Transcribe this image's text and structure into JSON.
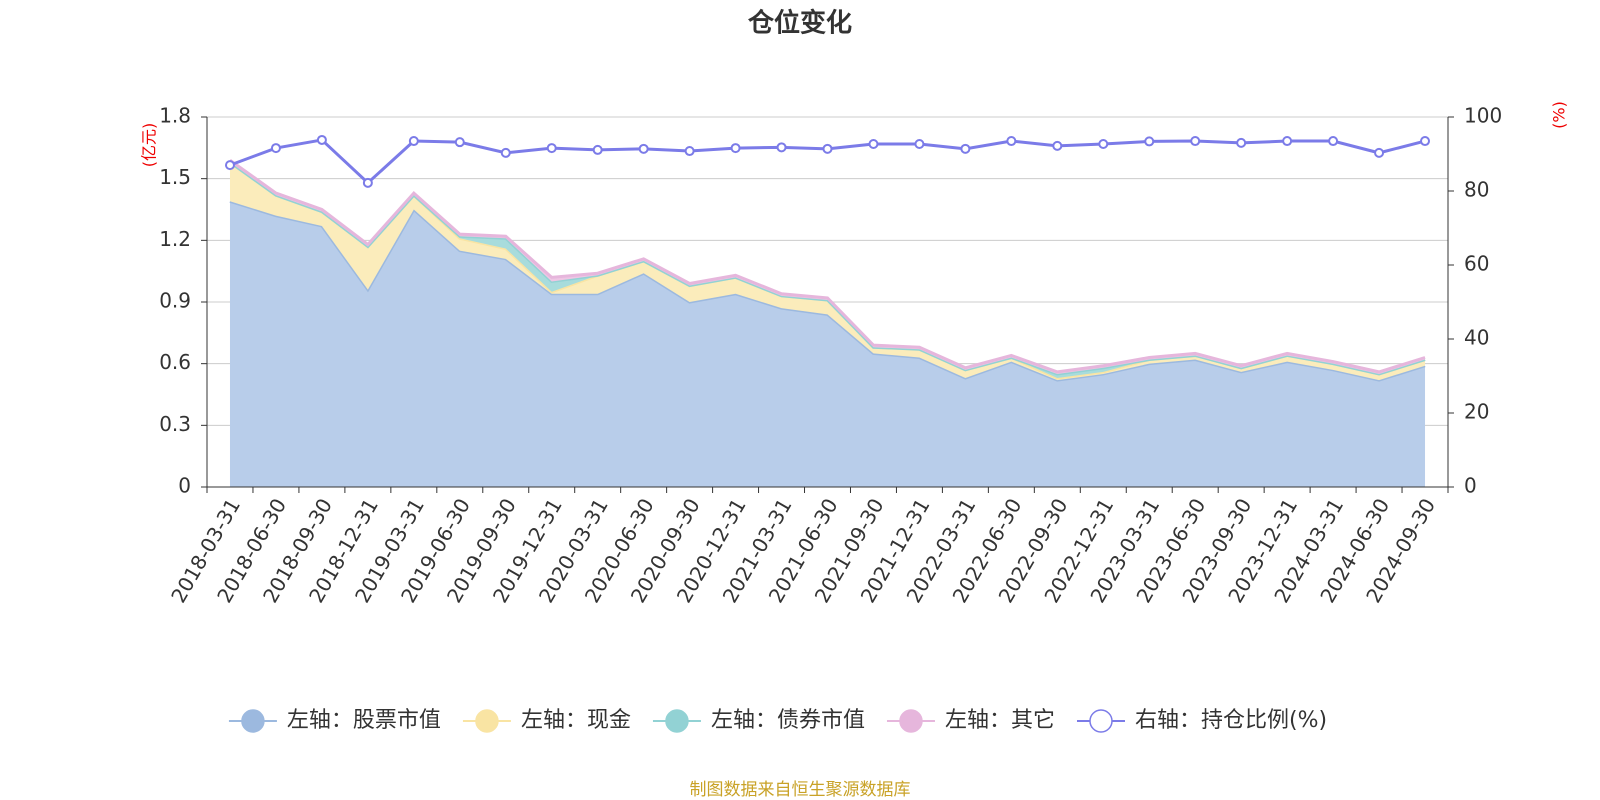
{
  "chart_data": {
    "type": "stacked-area-line",
    "title": "仓位变化",
    "y_label": "(亿元)",
    "y2_label": "(%)",
    "source": "制图数据来自恒生聚源数据库",
    "categories": [
      "2018-03-31",
      "2018-06-30",
      "2018-09-30",
      "2018-12-31",
      "2019-03-31",
      "2019-06-30",
      "2019-09-30",
      "2019-12-31",
      "2020-03-31",
      "2020-06-30",
      "2020-09-30",
      "2020-12-31",
      "2021-03-31",
      "2021-06-30",
      "2021-09-30",
      "2021-12-31",
      "2022-03-31",
      "2022-06-30",
      "2022-09-30",
      "2022-12-31",
      "2023-03-31",
      "2023-06-30",
      "2023-09-30",
      "2023-12-31",
      "2024-03-31",
      "2024-06-30",
      "2024-09-30"
    ],
    "series": [
      {
        "name": "左轴：股票市值",
        "color": "#9cb9df",
        "fill": "#b8cdea",
        "values": [
          1.39,
          1.32,
          1.27,
          0.96,
          1.35,
          1.15,
          1.11,
          0.94,
          0.94,
          1.04,
          0.9,
          0.94,
          0.87,
          0.84,
          0.65,
          0.63,
          0.53,
          0.61,
          0.52,
          0.55,
          0.6,
          0.62,
          0.56,
          0.61,
          0.57,
          0.52,
          0.59
        ]
      },
      {
        "name": "左轴：现金",
        "color": "#f9e4a3",
        "fill": "#fbecbb",
        "values": [
          0.19,
          0.1,
          0.07,
          0.21,
          0.07,
          0.06,
          0.05,
          0.01,
          0.09,
          0.06,
          0.08,
          0.08,
          0.06,
          0.07,
          0.03,
          0.04,
          0.04,
          0.02,
          0.01,
          0.01,
          0.02,
          0.02,
          0.02,
          0.03,
          0.03,
          0.03,
          0.03
        ]
      },
      {
        "name": "左轴：债券市值",
        "color": "#92d2d4",
        "fill": "#a8dcdc",
        "values": [
          0,
          0,
          0,
          0,
          0,
          0.01,
          0.05,
          0.05,
          0,
          0,
          0,
          0,
          0,
          0,
          0,
          0,
          0,
          0,
          0.02,
          0.02,
          0,
          0,
          0,
          0,
          0,
          0,
          0
        ]
      },
      {
        "name": "左轴：其它",
        "color": "#e6b6dc",
        "fill": "#eec6e4",
        "values": [
          0.01,
          0.01,
          0.01,
          0.01,
          0.01,
          0.01,
          0.01,
          0.02,
          0.01,
          0.01,
          0.01,
          0.01,
          0.01,
          0.01,
          0.01,
          0.01,
          0.01,
          0.01,
          0.01,
          0.01,
          0.01,
          0.01,
          0.01,
          0.01,
          0.01,
          0.01,
          0.01
        ]
      },
      {
        "name": "右轴：持仓比例(%)",
        "color": "#7b7be8",
        "axis": "y2",
        "values": [
          87.0,
          91.6,
          93.8,
          82.2,
          93.5,
          93.2,
          90.3,
          91.6,
          91.1,
          91.4,
          90.8,
          91.6,
          91.8,
          91.4,
          92.7,
          92.7,
          91.4,
          93.5,
          92.2,
          92.7,
          93.4,
          93.5,
          93.0,
          93.5,
          93.5,
          90.3,
          93.5
        ]
      }
    ],
    "ylim": [
      0,
      1.8
    ],
    "yticks": [
      0,
      0.3,
      0.6,
      0.9,
      1.2,
      1.5,
      1.8
    ],
    "y2lim": [
      0,
      100
    ],
    "y2ticks": [
      0,
      20,
      40,
      60,
      80,
      100
    ],
    "grid": true
  }
}
